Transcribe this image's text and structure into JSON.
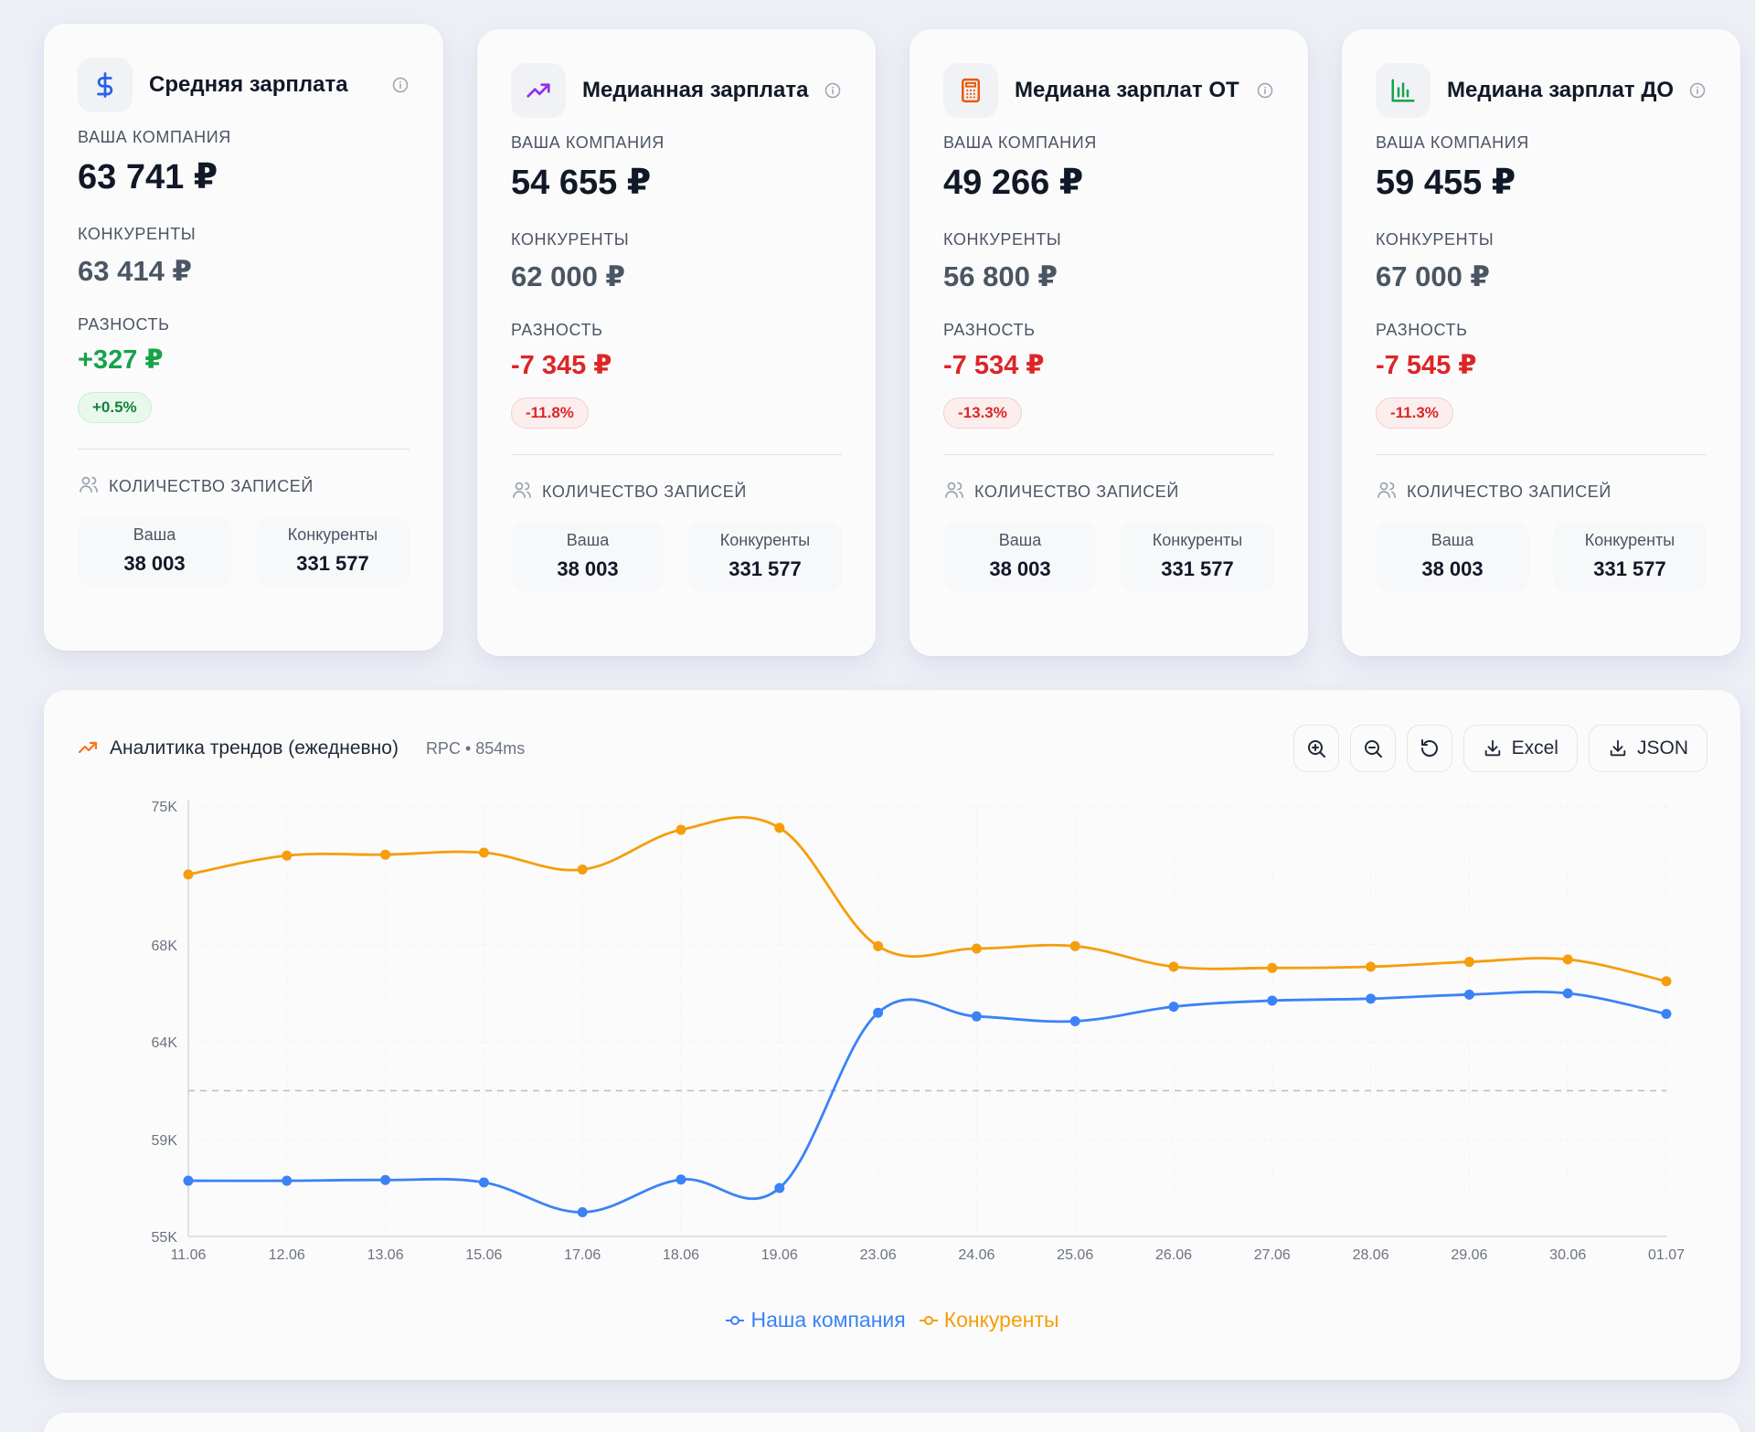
{
  "cards": [
    {
      "title": "Средняя зарплата",
      "icon": "dollar-icon",
      "icon_color": "#2563eb",
      "company_label": "ВАША КОМПАНИЯ",
      "company_value": "63 741 ₽",
      "competitors_label": "КОНКУРЕНТЫ",
      "competitors_value": "63 414 ₽",
      "diff_label": "РАЗНОСТЬ",
      "diff_value": "+327 ₽",
      "diff_percent": "+0.5%",
      "diff_sign": "pos",
      "count_label": "КОЛИЧЕСТВО ЗАПИСЕЙ",
      "ours_label": "Ваша",
      "ours_value": "38 003",
      "theirs_label": "Конкуренты",
      "theirs_value": "331 577"
    },
    {
      "title": "Медианная зарплата",
      "icon": "trending-up-icon",
      "icon_color": "#9333ea",
      "company_label": "ВАША КОМПАНИЯ",
      "company_value": "54 655 ₽",
      "competitors_label": "КОНКУРЕНТЫ",
      "competitors_value": "62 000 ₽",
      "diff_label": "РАЗНОСТЬ",
      "diff_value": "-7 345 ₽",
      "diff_percent": "-11.8%",
      "diff_sign": "neg",
      "count_label": "КОЛИЧЕСТВО ЗАПИСЕЙ",
      "ours_label": "Ваша",
      "ours_value": "38 003",
      "theirs_label": "Конкуренты",
      "theirs_value": "331 577"
    },
    {
      "title": "Медиана зарплат ОТ",
      "icon": "calculator-icon",
      "icon_color": "#ea580c",
      "company_label": "ВАША КОМПАНИЯ",
      "company_value": "49 266 ₽",
      "competitors_label": "КОНКУРЕНТЫ",
      "competitors_value": "56 800 ₽",
      "diff_label": "РАЗНОСТЬ",
      "diff_value": "-7 534 ₽",
      "diff_percent": "-13.3%",
      "diff_sign": "neg",
      "count_label": "КОЛИЧЕСТВО ЗАПИСЕЙ",
      "ours_label": "Ваша",
      "ours_value": "38 003",
      "theirs_label": "Конкуренты",
      "theirs_value": "331 577"
    },
    {
      "title": "Медиана зарплат ДО",
      "icon": "bar-chart-icon",
      "icon_color": "#16a34a",
      "company_label": "ВАША КОМПАНИЯ",
      "company_value": "59 455 ₽",
      "competitors_label": "КОНКУРЕНТЫ",
      "competitors_value": "67 000 ₽",
      "diff_label": "РАЗНОСТЬ",
      "diff_value": "-7 545 ₽",
      "diff_percent": "-11.3%",
      "diff_sign": "neg",
      "count_label": "КОЛИЧЕСТВО ЗАПИСЕЙ",
      "ours_label": "Ваша",
      "ours_value": "38 003",
      "theirs_label": "Конкуренты",
      "theirs_value": "331 577"
    }
  ],
  "chart_panel": {
    "title": "Аналитика трендов (ежедневно)",
    "meta": "RPC • 854ms",
    "zoom_in_icon": "zoom-in-icon",
    "zoom_out_icon": "zoom-out-icon",
    "reset_icon": "reset-icon",
    "excel_label": "Excel",
    "json_label": "JSON"
  },
  "chart_data": {
    "type": "line",
    "categories": [
      "11.06",
      "12.06",
      "13.06",
      "15.06",
      "17.06",
      "18.06",
      "19.06",
      "23.06",
      "24.06",
      "25.06",
      "26.06",
      "27.06",
      "28.06",
      "29.06",
      "30.06",
      "01.07"
    ],
    "y_ticks": [
      {
        "value": 75000,
        "label": "75K"
      },
      {
        "value": 68000,
        "label": "68K"
      },
      {
        "value": 64000,
        "label": "64K"
      },
      {
        "value": 59000,
        "label": "59K"
      },
      {
        "value": 55000,
        "label": "55K"
      }
    ],
    "ylim": [
      55000,
      75000
    ],
    "series": [
      {
        "name": "Наша компания",
        "color": "#3b82f6",
        "values": [
          57300,
          57300,
          57330,
          57230,
          56000,
          57350,
          57000,
          65200,
          65050,
          64850,
          65450,
          65700,
          65780,
          65950,
          66000,
          65150
        ]
      },
      {
        "name": "Конкуренты",
        "color": "#f59e0b",
        "values": [
          71550,
          72500,
          72550,
          72650,
          71800,
          73800,
          73900,
          67950,
          67850,
          67950,
          67100,
          67050,
          67100,
          67300,
          67400,
          66500
        ]
      }
    ],
    "reference_line": 61500,
    "grid": true,
    "legend_position": "bottom"
  }
}
